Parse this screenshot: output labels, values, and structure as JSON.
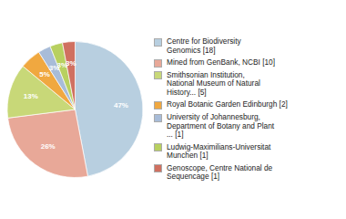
{
  "chart_data": {
    "type": "pie",
    "categories": [
      "Centre for Biodiversity\nGenomics [18]",
      "Mined from GenBank, NCBI [10]",
      "Smithsonian Institution,\nNational Museum of Natural\nHistory... [5]",
      "Royal Botanic Garden Edinburgh [2]",
      "University of Johannesburg,\nDepartment of Botany and Plant\n... [1]",
      "Ludwig-Maximilians-Universitat\nMunchen [1]",
      "Genoscope, Centre National de\nSequencage [1]"
    ],
    "values": [
      47,
      26,
      13,
      5,
      3,
      3,
      3
    ],
    "value_labels": [
      "47%",
      "26%",
      "13%",
      "5%",
      "3%",
      "3%",
      "3%"
    ],
    "colors": [
      "#b8cfe0",
      "#e8a898",
      "#c8d878",
      "#f0a840",
      "#a8bcd8",
      "#b8d060",
      "#d07060"
    ],
    "data_labels": true,
    "legend": "right"
  }
}
